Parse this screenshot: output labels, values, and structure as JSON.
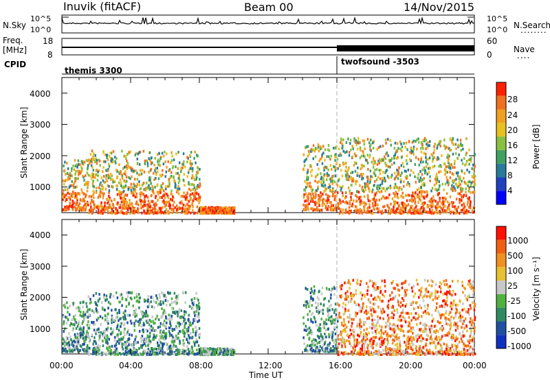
{
  "header": {
    "title": "Inuvik (fitACF)",
    "beam": "Beam 00",
    "date": "14/Nov/2015"
  },
  "nsky_panel": {
    "left_label": "N.Sky",
    "right_label": "N.Search",
    "ticks": [
      "10^5",
      "10^0"
    ],
    "right_legend_dots": "........"
  },
  "freq_panel": {
    "left_label_1": "Freq.",
    "left_label_2": "[MHz]",
    "left_ticks": [
      "18",
      "8"
    ],
    "right_label": "Nave",
    "right_ticks": [
      "60",
      "0"
    ],
    "right_legend_dots": "...."
  },
  "cpid_panel": {
    "label": "CPID",
    "programs": [
      "themis 3300",
      "twofsound -3503"
    ]
  },
  "power_panel": {
    "ylabel": "Slant Range [km]",
    "yticks": [
      "4000",
      "3000",
      "2000",
      "1000"
    ],
    "colorbar_title": "Power [dB]",
    "colorbar_ticks": [
      "28",
      "24",
      "20",
      "16",
      "12",
      "8",
      "4"
    ]
  },
  "velocity_panel": {
    "ylabel": "Slant Range [km]",
    "yticks": [
      "4000",
      "3000",
      "2000",
      "1000"
    ],
    "colorbar_title": "Velocity [m s⁻¹]",
    "colorbar_ticks": [
      "1000",
      "500",
      "100",
      "25",
      "-25",
      "-100",
      "-500",
      "-1000"
    ]
  },
  "xaxis": {
    "label": "Time UT",
    "ticks": [
      "00:00",
      "04:00",
      "08:00",
      "12:00",
      "16:00",
      "20:00",
      "00:00"
    ]
  },
  "chart_data": {
    "type": "heatmap",
    "title": "Inuvik (fitACF)",
    "subtitle": "Beam 00",
    "x_range_hours": [
      0,
      24
    ],
    "y_range_km": [
      180,
      4500
    ],
    "program_switch_hour": 16,
    "power_colors": [
      "#0000ff",
      "#2040c0",
      "#2a7a9a",
      "#40a060",
      "#88c040",
      "#e8c020",
      "#f0a020",
      "#f07020",
      "#ff2000"
    ],
    "velocity_colors": [
      "#1030c0",
      "#2050a0",
      "#308a60",
      "#50b040",
      "#c8c8c8",
      "#e8c030",
      "#f09020",
      "#f06010",
      "#ff1000"
    ],
    "power_colorbar_range": [
      0,
      32
    ],
    "velocity_colorbar_range": [
      -1500,
      1500
    ],
    "scatter_regions_approx": [
      {
        "t_start": 0.0,
        "t_end": 1.5,
        "range_low": 300,
        "range_high": 1900
      },
      {
        "t_start": 1.5,
        "t_end": 8.0,
        "range_low": 200,
        "range_high": 2200
      },
      {
        "t_start": 8.0,
        "t_end": 10.0,
        "range_low": 200,
        "range_high": 400
      },
      {
        "t_start": 14.0,
        "t_end": 16.0,
        "range_low": 300,
        "range_high": 2400
      },
      {
        "t_start": 16.0,
        "t_end": 24.0,
        "range_low": 200,
        "range_high": 2600
      }
    ]
  }
}
